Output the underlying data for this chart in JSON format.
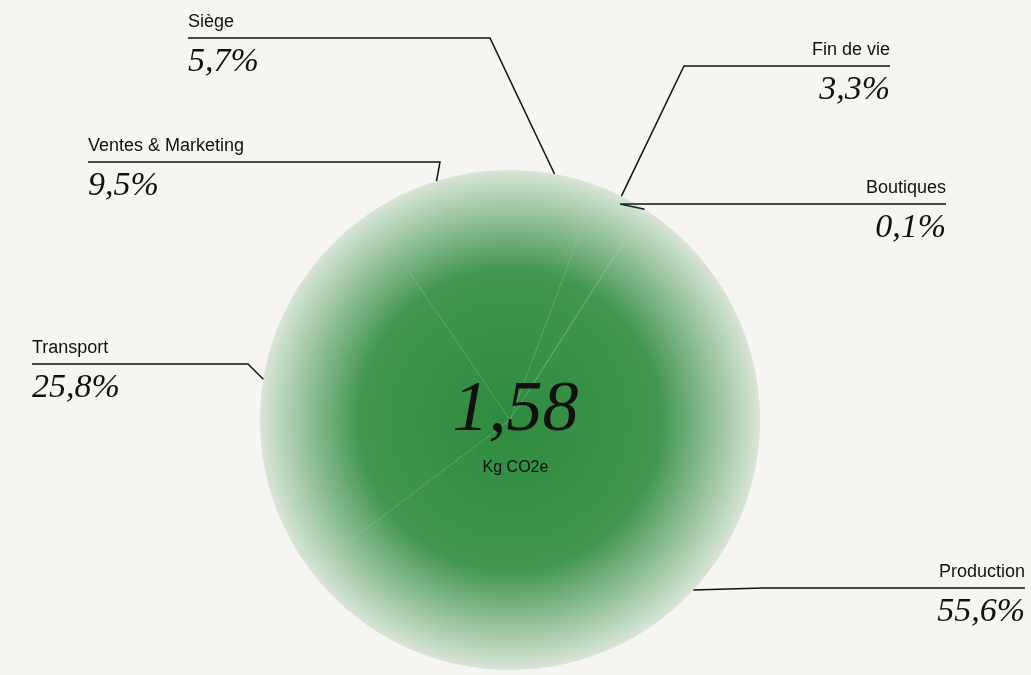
{
  "chart_data": {
    "type": "pie",
    "categories": [
      "Siège",
      "Fin de vie",
      "Boutiques",
      "Production",
      "Transport",
      "Ventes & Marketing"
    ],
    "values": [
      5.7,
      3.3,
      0.1,
      55.6,
      25.8,
      9.5
    ],
    "value_labels": [
      "5,7%",
      "3,3%",
      "0,1%",
      "55,6%",
      "25,8%",
      "9,5%"
    ],
    "colors": [
      "#2e8b3e",
      "#2e8b3e",
      "#2e8b3e",
      "#2e8b3e",
      "#2e8b3e",
      "#2e8b3e"
    ],
    "annotations": [
      "1,58",
      "Kg CO2e"
    ],
    "legend": false
  }
}
